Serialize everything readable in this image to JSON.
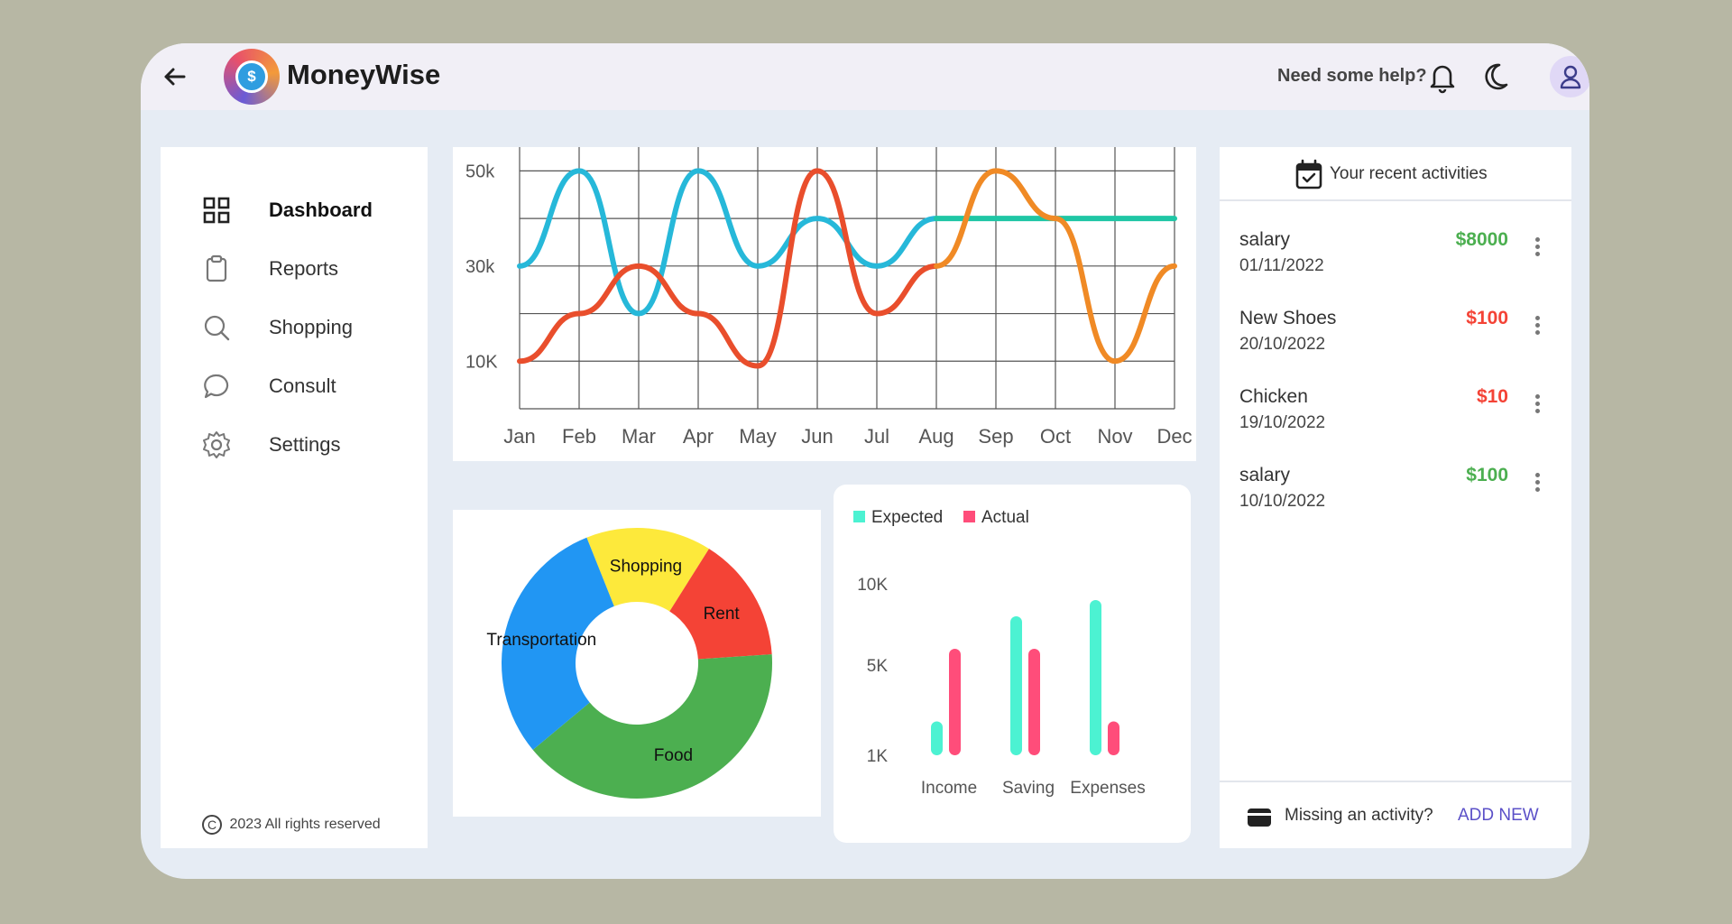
{
  "header": {
    "app_title": "MoneyWise",
    "logo_symbol": "$",
    "help_text": "Need some help?",
    "icons": [
      "back-arrow-icon",
      "bell-icon",
      "moon-icon",
      "user-icon"
    ]
  },
  "sidebar": {
    "items": [
      {
        "label": "Dashboard",
        "icon": "grid-icon",
        "active": true
      },
      {
        "label": "Reports",
        "icon": "clipboard-icon",
        "active": false
      },
      {
        "label": "Shopping",
        "icon": "search-icon",
        "active": false
      },
      {
        "label": "Consult",
        "icon": "chat-bubble-icon",
        "active": false
      },
      {
        "label": "Settings",
        "icon": "gear-icon",
        "active": false
      }
    ],
    "copyright_symbol": "C",
    "copyright": "2023 All rights reserved"
  },
  "chart_data": [
    {
      "type": "line",
      "categories": [
        "Jan",
        "Feb",
        "Mar",
        "Apr",
        "May",
        "Jun",
        "Jul",
        "Aug",
        "Sep",
        "Oct",
        "Nov",
        "Dec"
      ],
      "ytick_labels": [
        "50k",
        "30k",
        "10K"
      ],
      "ylim": [
        0,
        55000
      ],
      "grid": true,
      "series": [
        {
          "color": "#26b8d9",
          "values": [
            30000,
            50000,
            20000,
            50000,
            30000,
            40000,
            30000,
            40000,
            null,
            null,
            null,
            null
          ]
        },
        {
          "color": "#1fc6a5",
          "values": [
            null,
            null,
            null,
            null,
            null,
            null,
            null,
            40000,
            40000,
            40000,
            40000,
            40000
          ]
        },
        {
          "color": "#e94e2c",
          "values": [
            10000,
            20000,
            30000,
            20000,
            9000,
            50000,
            20000,
            30000,
            null,
            null,
            null,
            null
          ]
        },
        {
          "color": "#f08a25",
          "values": [
            null,
            null,
            null,
            null,
            null,
            null,
            null,
            30000,
            50000,
            40000,
            10000,
            30000
          ]
        }
      ]
    },
    {
      "type": "pie",
      "donut": true,
      "slices": [
        {
          "label": "Shopping",
          "value": 15,
          "color": "#fde93b"
        },
        {
          "label": "Rent",
          "value": 15,
          "color": "#f44336"
        },
        {
          "label": "Food",
          "value": 40,
          "color": "#4caf50"
        },
        {
          "label": "Transportation",
          "value": 30,
          "color": "#2196f3"
        }
      ]
    },
    {
      "type": "bar",
      "categories": [
        "Income",
        "Saving",
        "Expenses"
      ],
      "ytick_values": [
        1000,
        5000,
        10000
      ],
      "ytick_labels": [
        "1K",
        "5K",
        "10K"
      ],
      "legend_position": "top-left",
      "series": [
        {
          "name": "Expected",
          "color": "#4cf2d2",
          "values": [
            2500,
            8000,
            9000
          ]
        },
        {
          "name": "Actual",
          "color": "#ff4d7a",
          "values": [
            6000,
            6000,
            2500
          ]
        }
      ]
    }
  ],
  "activities": {
    "title": "Your recent activities",
    "items": [
      {
        "name": "salary",
        "date": "01/11/2022",
        "amount": "$8000",
        "type": "income"
      },
      {
        "name": "New Shoes",
        "date": "20/10/2022",
        "amount": "$100",
        "type": "expense"
      },
      {
        "name": "Chicken",
        "date": "19/10/2022",
        "amount": "$10",
        "type": "expense"
      },
      {
        "name": "salary",
        "date": "10/10/2022",
        "amount": "$100",
        "type": "income"
      }
    ],
    "missing_text": "Missing an activity?",
    "add_new_label": "ADD NEW",
    "colors": {
      "income": "#4caf50",
      "expense": "#f44336"
    }
  }
}
